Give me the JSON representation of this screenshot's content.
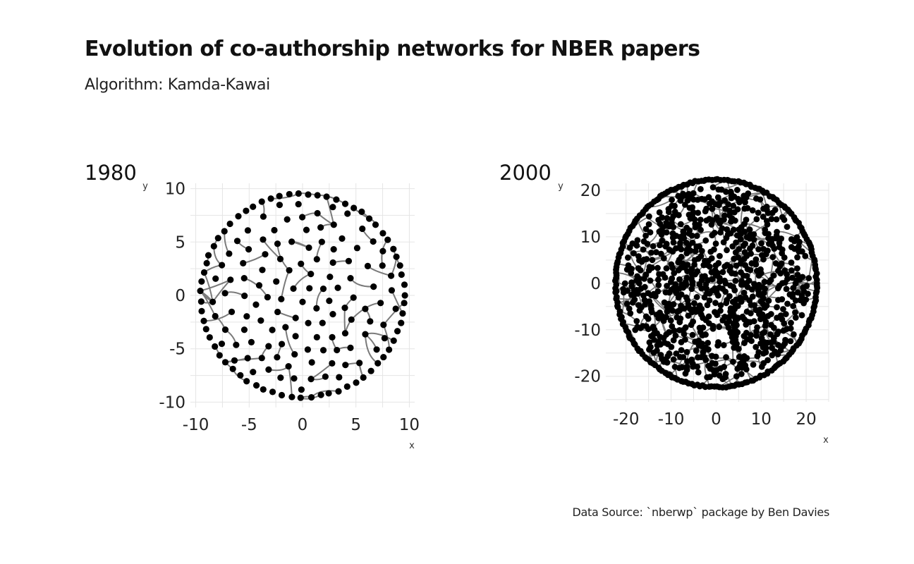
{
  "title": "Evolution of co-authorship networks for NBER papers",
  "subtitle": "Algorithm: Kamda-Kawai",
  "caption": "Data Source: `nberwp` package by Ben Davies",
  "colors": {
    "node": "#000000",
    "edge": "#7a7a7a",
    "grid": "#e5e5e5",
    "background": "#ffffff"
  },
  "chart_data": [
    {
      "type": "scatter",
      "panel_title": "1980",
      "xlabel": "x",
      "ylabel": "y",
      "xlim": [
        -10.5,
        10.5
      ],
      "ylim": [
        -10.5,
        10.5
      ],
      "x_ticks": [
        -10,
        -5,
        0,
        5,
        10
      ],
      "y_ticks": [
        -10,
        -5,
        0,
        5,
        10
      ],
      "x_tick_labels": [
        "-10",
        "-5",
        "0",
        "5",
        "10"
      ],
      "y_tick_labels": [
        "-10",
        "-5",
        "0",
        "5",
        "10"
      ],
      "layout": "circle",
      "radius": 9.6,
      "nodes": 185,
      "edges": 80,
      "grid": true
    },
    {
      "type": "scatter",
      "panel_title": "2000",
      "xlabel": "x",
      "ylabel": "y",
      "xlim": [
        -24.5,
        25
      ],
      "ylim": [
        -25.5,
        21.5
      ],
      "x_ticks": [
        -20,
        -10,
        0,
        10,
        20
      ],
      "y_ticks": [
        -20,
        -10,
        0,
        10,
        20
      ],
      "x_tick_labels": [
        "-20",
        "-10",
        "0",
        "10",
        "20"
      ],
      "y_tick_labels": [
        "-20",
        "-10",
        "0",
        "10",
        "20"
      ],
      "layout": "circle",
      "radius": 22.5,
      "nodes": 1000,
      "edges": 450,
      "grid": true
    }
  ]
}
